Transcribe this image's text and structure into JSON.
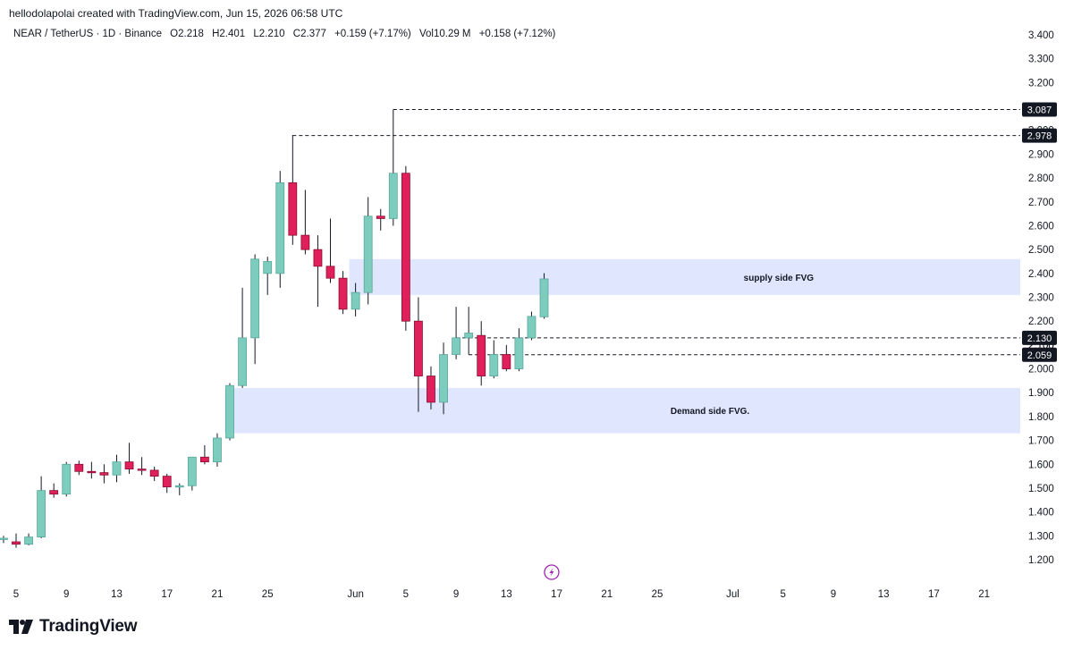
{
  "header": {
    "credit": "hellodolapolai created with TradingView.com, Jun 15, 2026 06:58 UTC"
  },
  "legend": {
    "symbol": "NEAR / TetherUS · 1D · Binance",
    "open": "O2.218",
    "high": "H2.401",
    "low": "L2.210",
    "close": "C2.377",
    "change": "+0.159 (+7.17%)",
    "volume": "Vol10.29 M",
    "volume_change": "+0.158 (+7.12%)"
  },
  "brand": {
    "name": "TradingView",
    "logo_icon": "tradingview-logo-icon"
  },
  "colors": {
    "up": "#7dcdbf",
    "up_border": "#5aa69a",
    "down": "#e0205a",
    "down_border": "#8a0d33",
    "wick": "#131722",
    "zone": "#dfe6fd",
    "tag_bg": "#131722",
    "lightning": "#9c27b0"
  },
  "chart_data": {
    "type": "candlestick",
    "title": "",
    "y_range": [
      1.12,
      3.46
    ],
    "y_ticks": [
      "1.200",
      "1.300",
      "1.400",
      "1.500",
      "1.600",
      "1.700",
      "1.800",
      "1.900",
      "2.000",
      "2.100",
      "2.200",
      "2.300",
      "2.400",
      "2.500",
      "2.600",
      "2.700",
      "2.800",
      "2.900",
      "3.000",
      "3.100",
      "3.200",
      "3.300",
      "3.400"
    ],
    "x_ticks": [
      {
        "label": "5",
        "day": 0
      },
      {
        "label": "9",
        "day": 4
      },
      {
        "label": "13",
        "day": 8
      },
      {
        "label": "17",
        "day": 12
      },
      {
        "label": "21",
        "day": 16
      },
      {
        "label": "25",
        "day": 20
      },
      {
        "label": "Jun",
        "day": 27
      },
      {
        "label": "5",
        "day": 31
      },
      {
        "label": "9",
        "day": 35
      },
      {
        "label": "13",
        "day": 39
      },
      {
        "label": "17",
        "day": 43
      },
      {
        "label": "21",
        "day": 47
      },
      {
        "label": "25",
        "day": 51
      },
      {
        "label": "Jul",
        "day": 57
      },
      {
        "label": "5",
        "day": 61
      },
      {
        "label": "9",
        "day": 65
      },
      {
        "label": "13",
        "day": 69
      },
      {
        "label": "17",
        "day": 73
      },
      {
        "label": "21",
        "day": 77
      }
    ],
    "candles": [
      {
        "day": -1,
        "o": 1.29,
        "h": 1.3,
        "l": 1.27,
        "c": 1.29
      },
      {
        "day": 0,
        "o": 1.275,
        "h": 1.31,
        "l": 1.25,
        "c": 1.265
      },
      {
        "day": 1,
        "o": 1.265,
        "h": 1.31,
        "l": 1.26,
        "c": 1.295
      },
      {
        "day": 2,
        "o": 1.295,
        "h": 1.55,
        "l": 1.29,
        "c": 1.49
      },
      {
        "day": 3,
        "o": 1.49,
        "h": 1.52,
        "l": 1.46,
        "c": 1.475
      },
      {
        "day": 4,
        "o": 1.475,
        "h": 1.61,
        "l": 1.465,
        "c": 1.6
      },
      {
        "day": 5,
        "o": 1.6,
        "h": 1.615,
        "l": 1.555,
        "c": 1.57
      },
      {
        "day": 6,
        "o": 1.57,
        "h": 1.61,
        "l": 1.54,
        "c": 1.565
      },
      {
        "day": 7,
        "o": 1.565,
        "h": 1.6,
        "l": 1.52,
        "c": 1.555
      },
      {
        "day": 8,
        "o": 1.555,
        "h": 1.64,
        "l": 1.525,
        "c": 1.61
      },
      {
        "day": 9,
        "o": 1.61,
        "h": 1.69,
        "l": 1.56,
        "c": 1.58
      },
      {
        "day": 10,
        "o": 1.58,
        "h": 1.63,
        "l": 1.555,
        "c": 1.575
      },
      {
        "day": 11,
        "o": 1.575,
        "h": 1.59,
        "l": 1.53,
        "c": 1.55
      },
      {
        "day": 12,
        "o": 1.55,
        "h": 1.56,
        "l": 1.48,
        "c": 1.505
      },
      {
        "day": 13,
        "o": 1.505,
        "h": 1.52,
        "l": 1.47,
        "c": 1.51
      },
      {
        "day": 14,
        "o": 1.51,
        "h": 1.63,
        "l": 1.49,
        "c": 1.63
      },
      {
        "day": 15,
        "o": 1.63,
        "h": 1.68,
        "l": 1.6,
        "c": 1.61
      },
      {
        "day": 16,
        "o": 1.61,
        "h": 1.73,
        "l": 1.59,
        "c": 1.71
      },
      {
        "day": 17,
        "o": 1.71,
        "h": 1.94,
        "l": 1.7,
        "c": 1.93
      },
      {
        "day": 18,
        "o": 1.93,
        "h": 2.34,
        "l": 1.92,
        "c": 2.13
      },
      {
        "day": 19,
        "o": 2.13,
        "h": 2.48,
        "l": 2.02,
        "c": 2.46
      },
      {
        "day": 20,
        "o": 2.4,
        "h": 2.47,
        "l": 2.31,
        "c": 2.45
      },
      {
        "day": 21,
        "o": 2.4,
        "h": 2.83,
        "l": 2.34,
        "c": 2.78
      },
      {
        "day": 22,
        "o": 2.78,
        "h": 2.98,
        "l": 2.52,
        "c": 2.56
      },
      {
        "day": 23,
        "o": 2.56,
        "h": 2.75,
        "l": 2.48,
        "c": 2.5
      },
      {
        "day": 24,
        "o": 2.5,
        "h": 2.56,
        "l": 2.26,
        "c": 2.43
      },
      {
        "day": 25,
        "o": 2.43,
        "h": 2.63,
        "l": 2.36,
        "c": 2.38
      },
      {
        "day": 26,
        "o": 2.38,
        "h": 2.41,
        "l": 2.23,
        "c": 2.25
      },
      {
        "day": 27,
        "o": 2.25,
        "h": 2.36,
        "l": 2.22,
        "c": 2.32
      },
      {
        "day": 28,
        "o": 2.32,
        "h": 2.72,
        "l": 2.27,
        "c": 2.64
      },
      {
        "day": 29,
        "o": 2.64,
        "h": 2.67,
        "l": 2.58,
        "c": 2.63
      },
      {
        "day": 30,
        "o": 2.63,
        "h": 3.087,
        "l": 2.6,
        "c": 2.82
      },
      {
        "day": 31,
        "o": 2.82,
        "h": 2.85,
        "l": 2.16,
        "c": 2.2
      },
      {
        "day": 32,
        "o": 2.2,
        "h": 2.3,
        "l": 1.82,
        "c": 1.97
      },
      {
        "day": 33,
        "o": 1.97,
        "h": 2.01,
        "l": 1.83,
        "c": 1.86
      },
      {
        "day": 34,
        "o": 1.86,
        "h": 2.11,
        "l": 1.81,
        "c": 2.06
      },
      {
        "day": 35,
        "o": 2.06,
        "h": 2.26,
        "l": 2.04,
        "c": 2.13
      },
      {
        "day": 36,
        "o": 2.13,
        "h": 2.26,
        "l": 2.06,
        "c": 2.15
      },
      {
        "day": 37,
        "o": 2.14,
        "h": 2.2,
        "l": 1.93,
        "c": 1.97
      },
      {
        "day": 38,
        "o": 1.97,
        "h": 2.12,
        "l": 1.96,
        "c": 2.06
      },
      {
        "day": 39,
        "o": 2.06,
        "h": 2.1,
        "l": 1.99,
        "c": 2.0
      },
      {
        "day": 40,
        "o": 2.0,
        "h": 2.17,
        "l": 1.99,
        "c": 2.13
      },
      {
        "day": 41,
        "o": 2.13,
        "h": 2.24,
        "l": 2.12,
        "c": 2.22
      },
      {
        "day": 42,
        "o": 2.218,
        "h": 2.401,
        "l": 2.21,
        "c": 2.377
      }
    ],
    "zones": [
      {
        "label": "supply side FVG",
        "from_day": 26.5,
        "top": 2.46,
        "bottom": 2.31
      },
      {
        "label": "Demand side FVG.",
        "from_day": 16.6,
        "top": 1.92,
        "bottom": 1.73
      }
    ],
    "levels": [
      {
        "value": 3.087,
        "label": "3.087",
        "from_day": 30
      },
      {
        "value": 2.978,
        "label": "2.978",
        "from_day": 22
      },
      {
        "value": 2.13,
        "label": "2.130",
        "from_day": 35
      },
      {
        "value": 2.059,
        "label": "2.059",
        "from_day": 36
      }
    ],
    "hidden_tick_fragment": "2.100",
    "grid": false,
    "legend_position": "top-left"
  }
}
